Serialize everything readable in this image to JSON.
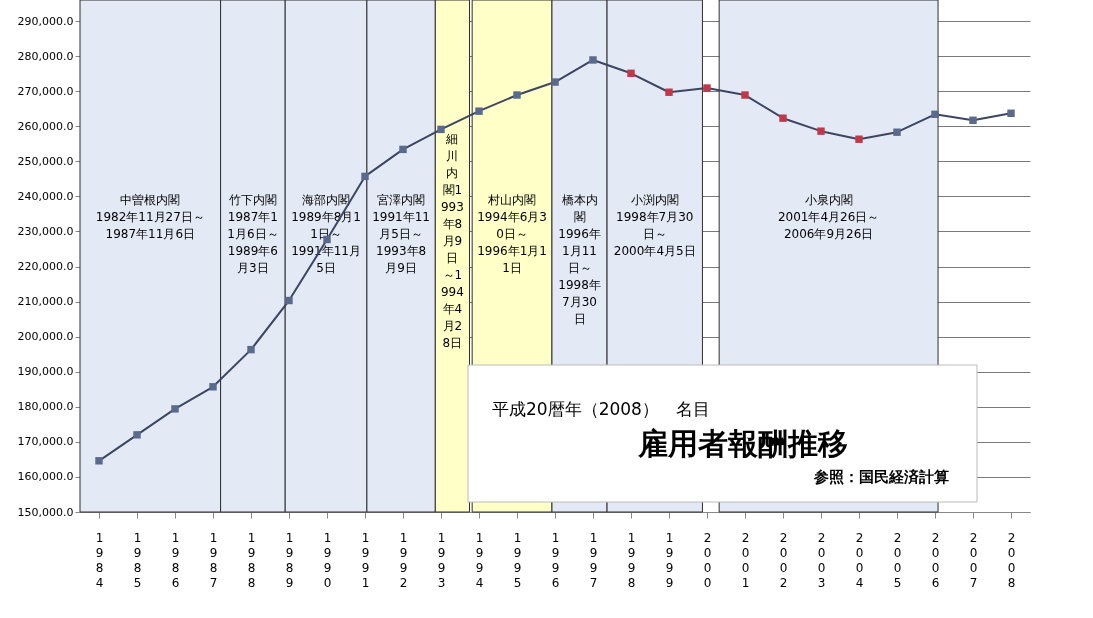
{
  "chart_data": {
    "type": "line",
    "title": "雇用者報酬推移",
    "subtitle": "平成20暦年（2008）　名目",
    "annotations": [
      "参照：国民経済計算"
    ],
    "x": [
      1984,
      1985,
      1986,
      1987,
      1988,
      1989,
      1990,
      1991,
      1992,
      1993,
      1994,
      1995,
      1996,
      1997,
      1998,
      1999,
      2000,
      2001,
      2002,
      2003,
      2004,
      2005,
      2006,
      2007,
      2008
    ],
    "xlim": [
      1983.5,
      2008.5
    ],
    "xticks": [
      1984,
      1985,
      1986,
      1987,
      1988,
      1989,
      1990,
      1991,
      1992,
      1993,
      1994,
      1995,
      1996,
      1997,
      1998,
      1999,
      2000,
      2001,
      2002,
      2003,
      2004,
      2005,
      2006,
      2007,
      2008
    ],
    "ylim": [
      150000,
      296000
    ],
    "yticks": [
      {
        "value": 150000,
        "label": "150,000.0"
      },
      {
        "value": 160000,
        "label": "160,000.0"
      },
      {
        "value": 170000,
        "label": "170,000.0"
      },
      {
        "value": 180000,
        "label": "180,000.0"
      },
      {
        "value": 190000,
        "label": "190,000.0"
      },
      {
        "value": 200000,
        "label": "200,000.0"
      },
      {
        "value": 210000,
        "label": "210,000.0"
      },
      {
        "value": 220000,
        "label": "220,000.0"
      },
      {
        "value": 230000,
        "label": "230,000.0"
      },
      {
        "value": 240000,
        "label": "240,000.0"
      },
      {
        "value": 250000,
        "label": "250,000.0"
      },
      {
        "value": 260000,
        "label": "260,000.0"
      },
      {
        "value": 270000,
        "label": "270,000.0"
      },
      {
        "value": 280000,
        "label": "280,000.0"
      },
      {
        "value": 290000,
        "label": "290,000.0"
      }
    ],
    "grid": "y",
    "marker": "square",
    "line_style": "solid",
    "series": [
      {
        "color": "#3c4660",
        "colors": [
          "#5a6a8c",
          "#5a6a8c",
          "#5a6a8c",
          "#5a6a8c",
          "#5a6a8c",
          "#5a6a8c",
          "#5a6a8c",
          "#5a6a8c",
          "#5a6a8c",
          "#5a6a8c",
          "#5a6a8c",
          "#5a6a8c",
          "#5a6a8c",
          "#5a6a8c",
          "#c0394a",
          "#c0394a",
          "#c0394a",
          "#c0394a",
          "#c0394a",
          "#c0394a",
          "#c0394a",
          "#5a6a8c",
          "#5a6a8c",
          "#5a6a8c",
          "#5a6a8c"
        ],
        "values": [
          164600,
          172000,
          179400,
          185700,
          196300,
          210300,
          227700,
          245700,
          253400,
          259100,
          264300,
          268900,
          272600,
          278900,
          275100,
          269700,
          270900,
          268900,
          262300,
          258600,
          256300,
          258300,
          263400,
          261700,
          263700
        ]
      }
    ],
    "bands": [
      {
        "axis": "x",
        "from": 1983.5,
        "to": 1987.2,
        "color": "#e3eaf6",
        "label": "中曽根内閣\n1982年11月27日～\n1987年11月6日"
      },
      {
        "axis": "x",
        "from": 1987.2,
        "to": 1988.9,
        "color": "#e3eaf6",
        "label": "竹下内閣\n1987年11月6日～\n1989年6月3日"
      },
      {
        "axis": "x",
        "from": 1988.9,
        "to": 1991.05,
        "color": "#e3eaf6",
        "label": "海部内閣\n1989年8月11日～\n1991年11月5日"
      },
      {
        "axis": "x",
        "from": 1991.05,
        "to": 1992.85,
        "color": "#e3eaf6",
        "label": "宮澤内閣\n1991年11月5日～\n1993年8月9日"
      },
      {
        "axis": "x",
        "from": 1992.85,
        "to": 1993.75,
        "color": "#ffffc8",
        "label": "細川内閣1993年8月9日～1994年4月28日"
      },
      {
        "axis": "x",
        "from": 1993.82,
        "to": 1995.92,
        "color": "#ffffc8",
        "label": "村山内閣\n1994年6月30日～\n1996年1月11日"
      },
      {
        "axis": "x",
        "from": 1995.92,
        "to": 1997.37,
        "color": "#e3eaf6",
        "label": "橋本内閣\n1996年1月11日～\n1998年7月30日"
      },
      {
        "axis": "x",
        "from": 1997.37,
        "to": 1999.88,
        "color": "#e3eaf6",
        "label": "小渕内閣\n1998年7月30日～\n2000年4月5日"
      },
      {
        "axis": "x",
        "from": 2000.32,
        "to": 2006.08,
        "color": "#e3eaf6",
        "label": "小泉内閣\n2001年4月26日～\n2006年9月26日"
      }
    ]
  }
}
